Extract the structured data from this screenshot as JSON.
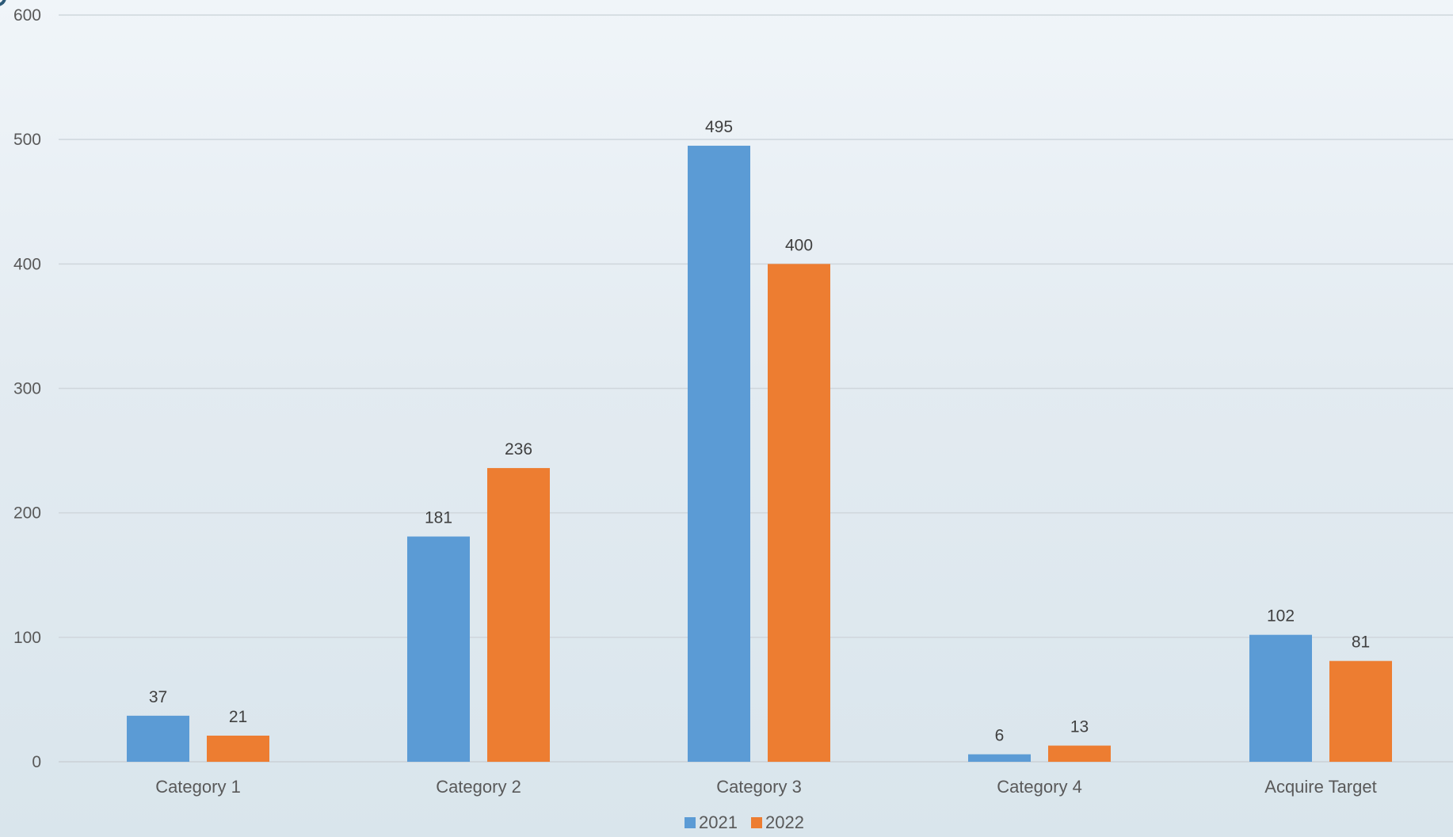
{
  "chart_data": {
    "type": "bar",
    "title": "",
    "xlabel": "",
    "ylabel": "",
    "categories": [
      "Category 1",
      "Category 2",
      "Category 3",
      "Category 4",
      "Acquire Target"
    ],
    "series": [
      {
        "name": "2021",
        "values": [
          37,
          181,
          495,
          6,
          102
        ],
        "color": "#5b9bd5"
      },
      {
        "name": "2022",
        "values": [
          21,
          236,
          400,
          13,
          81
        ],
        "color": "#ed7d31"
      }
    ],
    "ylim": [
      0,
      600
    ],
    "yticks": [
      "0",
      "100",
      "200",
      "300",
      "400",
      "500",
      "600"
    ],
    "grid": true,
    "data_labels": true,
    "legend_position": "bottom-center"
  }
}
